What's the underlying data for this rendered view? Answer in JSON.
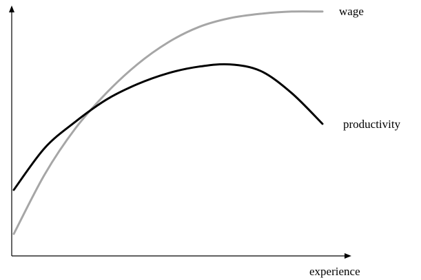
{
  "chart_data": {
    "type": "line",
    "title": "",
    "xlabel": "experience",
    "ylabel": "",
    "axes": {
      "x_ticks": false,
      "y_ticks": false,
      "grid": false,
      "arrows": true
    },
    "series": [
      {
        "name": "wage",
        "color": "#a6a6a6",
        "x": [
          0.0,
          0.1,
          0.2,
          0.3,
          0.4,
          0.5,
          0.6,
          0.7,
          0.8,
          0.9,
          1.0
        ],
        "y": [
          0.0,
          0.27,
          0.48,
          0.64,
          0.77,
          0.87,
          0.94,
          0.98,
          1.0,
          1.01,
          1.01
        ]
      },
      {
        "name": "productivity",
        "color": "#000000",
        "x": [
          0.0,
          0.1,
          0.2,
          0.3,
          0.4,
          0.5,
          0.6,
          0.7,
          0.8,
          0.9,
          1.0
        ],
        "y": [
          0.2,
          0.39,
          0.51,
          0.61,
          0.68,
          0.73,
          0.76,
          0.77,
          0.74,
          0.64,
          0.5
        ]
      }
    ]
  }
}
